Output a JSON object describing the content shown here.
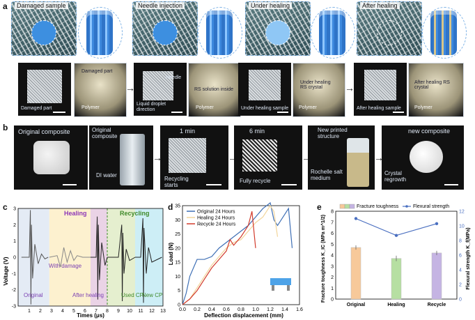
{
  "panel_letters": [
    "a",
    "b",
    "c",
    "d",
    "e"
  ],
  "panel_a": {
    "top_labels": [
      "Damaged sample",
      "Needle injection",
      "Under healing",
      "After healing"
    ],
    "photo_captions": [
      [
        "Damaged part"
      ],
      [
        "Damaged part",
        "Polymer"
      ],
      [
        "Needle",
        "Liquid droplet direction"
      ],
      [
        "RS solution inside",
        "Polymer"
      ],
      [
        "Under healing sample"
      ],
      [
        "Under healing RS crystal",
        "Polymer"
      ],
      [
        "After healing sample"
      ],
      [
        "After healing RS crystal",
        "Polymer"
      ]
    ]
  },
  "panel_b": {
    "captions": [
      "Original composite",
      "Original composite",
      "DI water",
      "1 min",
      "Recycling starts",
      "6 min",
      "Fully recycle",
      "New printed structure",
      "Rochelle salt medium",
      "new composite",
      "Crystal regrowth"
    ]
  },
  "panel_c": {
    "ylabel": "Voltage (V)",
    "xlabel": "Times (μs)",
    "yticks": [
      "3",
      "2",
      "1",
      "0",
      "-1",
      "-2",
      "-3"
    ],
    "xticks": [
      "1",
      "2",
      "3",
      "4",
      "5",
      "6",
      "7",
      "8",
      "9",
      "10",
      "11",
      "12",
      "13"
    ],
    "section_labels": [
      "Healing",
      "Recycling"
    ],
    "annotations": [
      "With damage",
      "Original",
      "After healing",
      "Used CP",
      "New CP"
    ],
    "colors": {
      "original": "#e4ebf5",
      "healing": "#fdf1cf",
      "after": "#ead3e6",
      "used": "#e5efcf",
      "new": "#cdeef6",
      "healing_text": "#8e38b7",
      "recycling_text": "#3f8a2a",
      "annot_text": "#7a3fb2",
      "green_text": "#3f8a2a"
    }
  },
  "panel_d": {
    "ylabel": "Load (N)",
    "xlabel": "Deflection displacement (mm)",
    "yticks": [
      "0",
      "5",
      "10",
      "15",
      "20",
      "25",
      "30",
      "35"
    ],
    "xticks": [
      "0.0",
      "0.2",
      "0.4",
      "0.6",
      "0.8",
      "1.0",
      "1.2",
      "1.4",
      "1.6"
    ],
    "legend": [
      "Original 24 Hours",
      "Healing 24 Hours",
      "Recycle 24 Hours"
    ],
    "colors": [
      "#3e6fb5",
      "#f2d59b",
      "#d23a2b"
    ]
  },
  "panel_e": {
    "legend": [
      "Fracture toughness",
      "Flexural strength"
    ],
    "ylabel_left": "Fracture toughness K_IC (MPa m^1/2)",
    "ylabel_right": "Flexural strength K_f(MPa)",
    "yticks_left": [
      "0",
      "1",
      "2",
      "3",
      "4",
      "5",
      "6",
      "7",
      "8"
    ],
    "yticks_right": [
      "0",
      "2",
      "4",
      "6",
      "8",
      "10",
      "12"
    ],
    "categories": [
      "Original",
      "Healing",
      "Recycle"
    ],
    "bar_colors": [
      "#f7c99a",
      "#b6dfa2",
      "#c5b4e3"
    ],
    "line_color": "#4a6fc0"
  },
  "chart_data": [
    {
      "type": "line",
      "panel": "c",
      "xlabel": "Times (μs)",
      "ylabel": "Voltage (V)",
      "xlim": [
        0,
        13
      ],
      "ylim": [
        -3,
        3
      ],
      "regions": [
        {
          "label": "Original",
          "x": [
            0,
            2.8
          ]
        },
        {
          "label": "Healing",
          "x": [
            2.8,
            8.0
          ]
        },
        {
          "label": "Recycling",
          "x": [
            8.0,
            13.0
          ]
        }
      ],
      "series": [
        {
          "x": [
            0.3,
            1.0,
            1.1,
            1.15,
            1.2,
            1.3,
            1.5,
            1.8,
            2.1,
            2.4,
            2.7
          ],
          "values": [
            0,
            0,
            2.9,
            -2.9,
            2.0,
            -1.3,
            0.8,
            -0.4,
            0.2,
            -0.1,
            0
          ]
        },
        {
          "x": [
            2.8,
            3.5,
            3.8,
            4.1,
            4.4,
            4.7,
            5.0,
            5.3,
            5.8,
            6.5
          ],
          "values": [
            0,
            0.1,
            -0.6,
            0.6,
            -0.3,
            0.4,
            -0.2,
            0.1,
            0,
            0
          ]
        },
        {
          "x": [
            6.5,
            7.0,
            7.1,
            7.15,
            7.2,
            7.3,
            7.5,
            7.8,
            8.0
          ],
          "values": [
            0,
            0,
            2.5,
            -2.6,
            2.0,
            -1.4,
            0.9,
            -0.5,
            0
          ]
        },
        {
          "x": [
            8.0,
            9.0,
            9.3,
            9.35,
            9.4,
            9.5,
            9.7,
            10.0,
            10.5
          ],
          "values": [
            0,
            0,
            2.0,
            -2.7,
            1.5,
            -1.0,
            0.5,
            -0.2,
            0
          ]
        },
        {
          "x": [
            10.5,
            11.0,
            11.2,
            11.25,
            11.3,
            11.5,
            11.7,
            12.0,
            12.9
          ],
          "values": [
            0,
            0,
            2.4,
            -2.8,
            1.8,
            -1.0,
            0.6,
            -0.3,
            0
          ]
        }
      ]
    },
    {
      "type": "line",
      "panel": "d",
      "xlabel": "Deflection displacement (mm)",
      "ylabel": "Load (N)",
      "xlim": [
        0,
        1.6
      ],
      "ylim": [
        0,
        35
      ],
      "series": [
        {
          "name": "Original 24 Hours",
          "x": [
            0,
            0.05,
            0.1,
            0.2,
            0.3,
            0.4,
            0.5,
            0.6,
            0.7,
            0.8,
            0.9,
            1.0,
            1.1,
            1.2,
            1.25,
            1.3,
            1.4,
            1.45,
            1.5
          ],
          "values": [
            0,
            4,
            10,
            16,
            16,
            17,
            20,
            22,
            24,
            26,
            28,
            31,
            34,
            36,
            30,
            28,
            32,
            34,
            20
          ]
        },
        {
          "name": "Healing 24 Hours",
          "x": [
            0,
            0.1,
            0.2,
            0.3,
            0.4,
            0.5,
            0.6,
            0.7,
            0.8,
            0.9,
            1.0,
            1.1,
            1.2,
            1.25,
            1.3
          ],
          "values": [
            0,
            2,
            6,
            10,
            14,
            17,
            20,
            22,
            23,
            26,
            29,
            31,
            35,
            33,
            24
          ]
        },
        {
          "name": "Recycle 24 Hours",
          "x": [
            0,
            0.1,
            0.2,
            0.3,
            0.4,
            0.5,
            0.6,
            0.65,
            0.7,
            0.8,
            0.9,
            0.95,
            1.0
          ],
          "values": [
            0,
            2,
            5,
            9,
            13,
            16,
            19,
            23,
            21,
            24,
            28,
            33,
            20
          ]
        }
      ]
    },
    {
      "type": "bar",
      "panel": "e",
      "categories": [
        "Original",
        "Healing",
        "Recycle"
      ],
      "series": [
        {
          "name": "Fracture toughness",
          "values": [
            4.7,
            3.7,
            4.2
          ],
          "errors": [
            0.2,
            0.25,
            0.2
          ]
        },
        {
          "name": "Flexural strength",
          "values": [
            11.0,
            8.7,
            10.3
          ],
          "kind": "line"
        }
      ],
      "ylim": [
        0,
        8
      ],
      "ylim_right": [
        0,
        12
      ]
    }
  ]
}
